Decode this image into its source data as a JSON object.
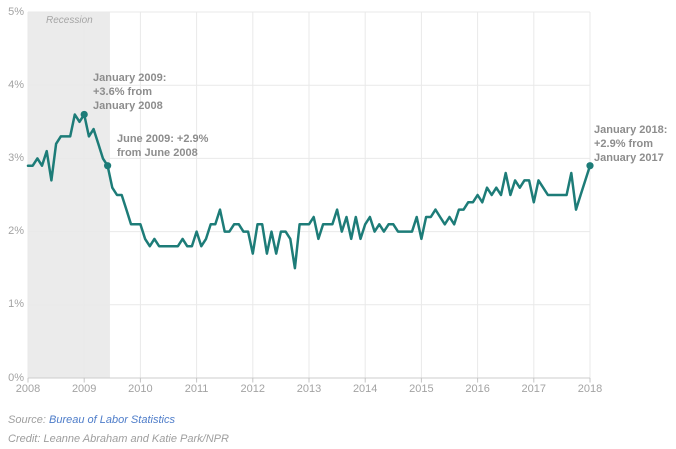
{
  "chart_data": {
    "type": "line",
    "x_start": "2008-01",
    "x_end": "2018-01",
    "x_tick_labels": [
      "2008",
      "2009",
      "2010",
      "2011",
      "2012",
      "2013",
      "2014",
      "2015",
      "2016",
      "2017",
      "2018"
    ],
    "y_tick_labels": [
      "0%",
      "1%",
      "2%",
      "3%",
      "4%",
      "5%"
    ],
    "y_axis_range": [
      0,
      5
    ],
    "grid": true,
    "legend": false,
    "values": [
      2.9,
      2.9,
      3.0,
      2.9,
      3.1,
      2.7,
      3.2,
      3.3,
      3.3,
      3.3,
      3.6,
      3.5,
      3.6,
      3.3,
      3.4,
      3.2,
      3.0,
      2.9,
      2.6,
      2.5,
      2.5,
      2.3,
      2.1,
      2.1,
      2.1,
      1.9,
      1.8,
      1.9,
      1.8,
      1.8,
      1.8,
      1.8,
      1.8,
      1.9,
      1.8,
      1.8,
      2.0,
      1.8,
      1.9,
      2.1,
      2.1,
      2.3,
      2.0,
      2.0,
      2.1,
      2.1,
      2.0,
      2.0,
      1.7,
      2.1,
      2.1,
      1.7,
      2.0,
      1.7,
      2.0,
      2.0,
      1.9,
      1.5,
      2.1,
      2.1,
      2.1,
      2.2,
      1.9,
      2.1,
      2.1,
      2.1,
      2.3,
      2.0,
      2.2,
      1.9,
      2.2,
      1.9,
      2.1,
      2.2,
      2.0,
      2.1,
      2.0,
      2.1,
      2.1,
      2.0,
      2.0,
      2.0,
      2.0,
      2.2,
      1.9,
      2.2,
      2.2,
      2.3,
      2.2,
      2.1,
      2.2,
      2.1,
      2.3,
      2.3,
      2.4,
      2.4,
      2.5,
      2.4,
      2.6,
      2.5,
      2.6,
      2.5,
      2.8,
      2.5,
      2.7,
      2.6,
      2.7,
      2.7,
      2.4,
      2.7,
      2.6,
      2.5,
      2.5,
      2.5,
      2.5,
      2.5,
      2.8,
      2.3,
      2.5,
      2.7,
      2.9
    ],
    "recession_band": {
      "label": "Recession",
      "start": "2008-01",
      "end": "2009-06",
      "start_index": 0,
      "end_index": 17.5
    },
    "markers": [
      {
        "date": "2009-01",
        "value": 3.6,
        "series_index": 12
      },
      {
        "date": "2009-06",
        "value": 2.9,
        "series_index": 17
      },
      {
        "date": "2018-01",
        "value": 2.9,
        "series_index": 120
      }
    ],
    "annotations": [
      {
        "id": "jan-2009",
        "text": "January 2009:\n+3.6% from\nJanuary 2008"
      },
      {
        "id": "jun-2009",
        "text": "June 2009: +2.9%\nfrom June 2008"
      },
      {
        "id": "jan-2018",
        "text": "January 2018:\n+2.9% from\nJanuary 2017"
      }
    ]
  },
  "footer": {
    "source_label": "Source:",
    "source_link": "Bureau of Labor Statistics",
    "credit": "Credit: Leanne Abraham and Katie Park/NPR"
  },
  "colors": {
    "line": "#1d7c78",
    "marker": "#1d7c78",
    "recession_band": "#ebebeb",
    "gridline": "#e9e9e9",
    "axis_line": "#cccccc",
    "tick": "#c4c4c4",
    "axis_text": "#a3a3a3",
    "annotation_text": "#8d8d8d",
    "recession_text": "#a6a6a6",
    "source_text": "#9e9e9e",
    "link": "#4d7cc9"
  }
}
